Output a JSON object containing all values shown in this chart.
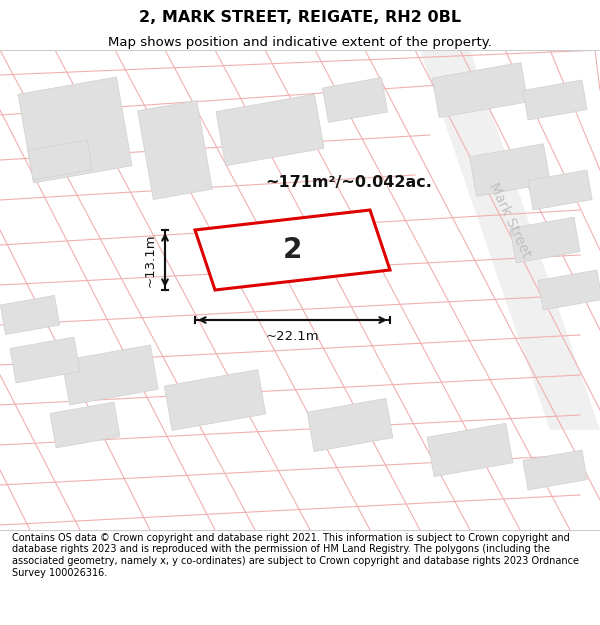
{
  "title": "2, MARK STREET, REIGATE, RH2 0BL",
  "subtitle": "Map shows position and indicative extent of the property.",
  "footer": "Contains OS data © Crown copyright and database right 2021. This information is subject to Crown copyright and database rights 2023 and is reproduced with the permission of HM Land Registry. The polygons (including the associated geometry, namely x, y co-ordinates) are subject to Crown copyright and database rights 2023 Ordnance Survey 100026316.",
  "area_label": "~171m²/~0.042ac.",
  "plot_number": "2",
  "width_label": "~22.1m",
  "height_label": "~13.1m",
  "street_label": "Mark Street",
  "map_bg": "#ffffff",
  "line_color": "#f0b0b0",
  "building_color": "#e0e0e0",
  "building_edge": "#d0d0d0",
  "highlight_color": "#dd0000",
  "road_gray": "#d8d8d8",
  "street_label_color": "#c0c0c0",
  "dim_color": "#111111",
  "area_label_color": "#111111"
}
